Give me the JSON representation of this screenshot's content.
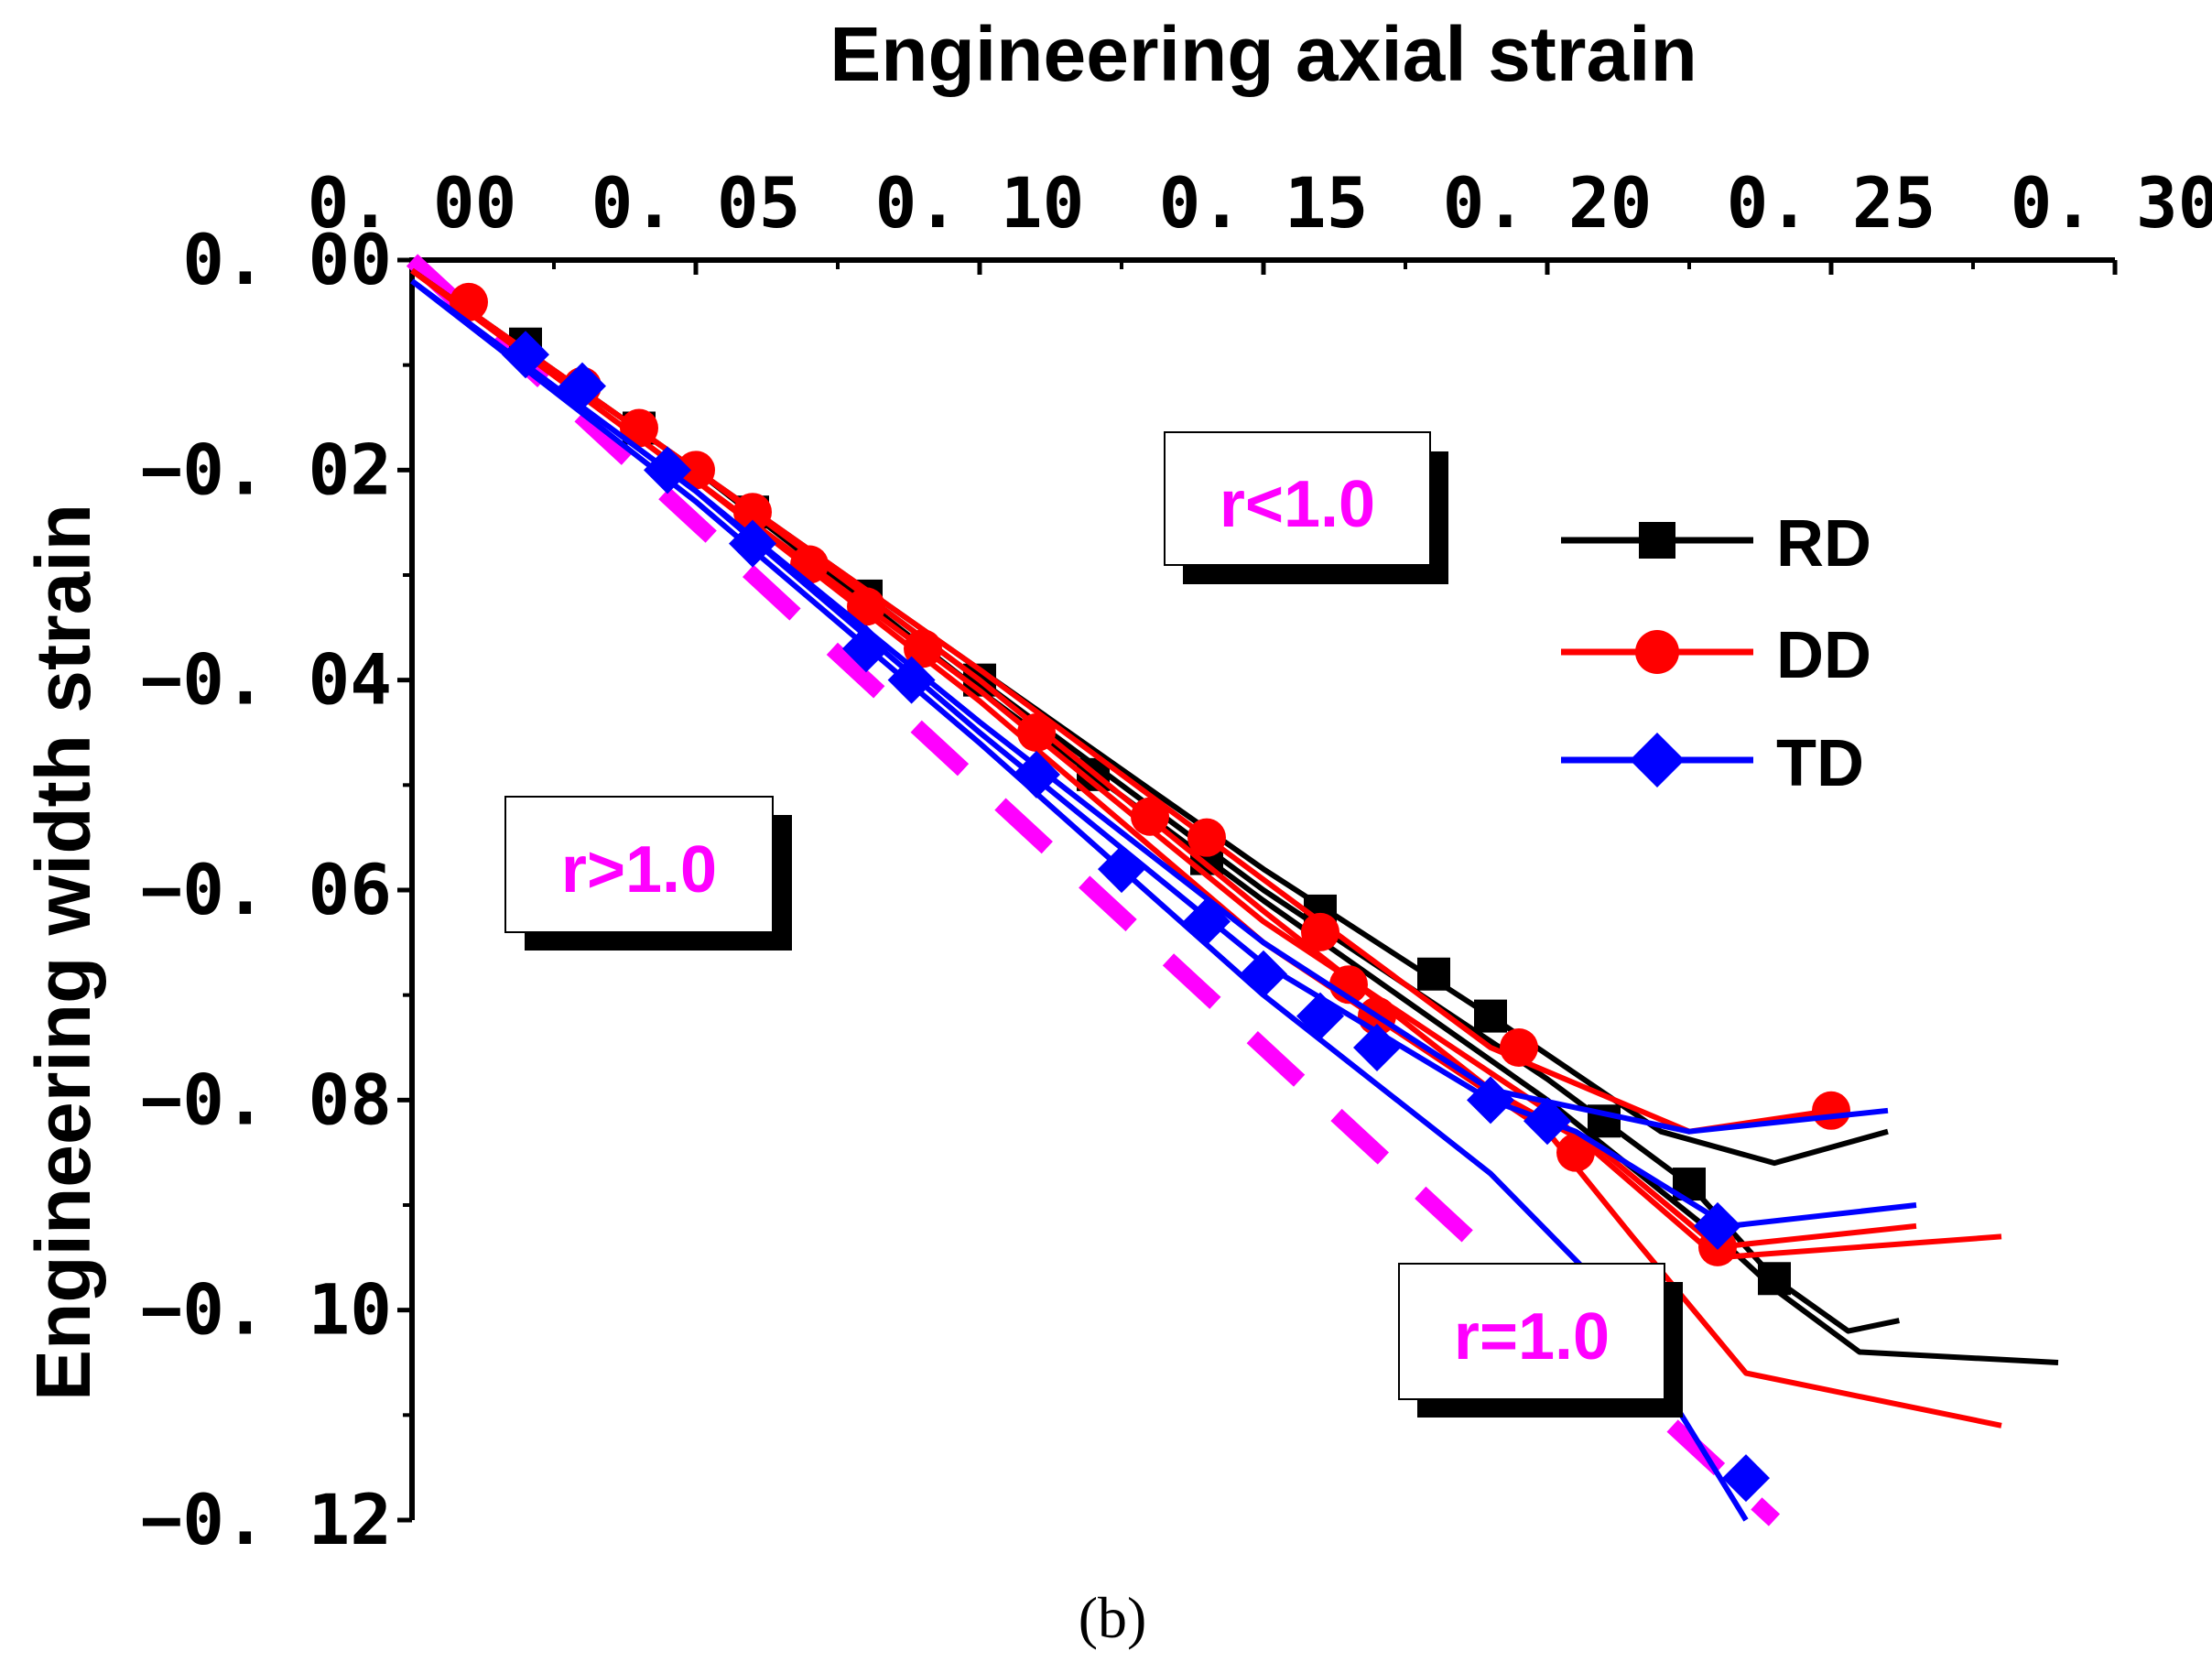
{
  "colors": {
    "RD": "#000000",
    "DD": "#ff0000",
    "TD": "#0000ff",
    "reference": "#ff00ff",
    "axis": "#000000"
  },
  "chart_data": {
    "type": "line",
    "xlabel": "Engineering axial strain",
    "ylabel": "Engineering width strain",
    "caption": "(b)",
    "xlim": [
      0,
      0.3
    ],
    "ylim": [
      -0.12,
      0
    ],
    "x_axis_position": "top",
    "x_ticks": [
      0,
      0.05,
      0.1,
      0.15,
      0.2,
      0.25,
      0.3
    ],
    "x_tick_labels": [
      "0. 00",
      "0. 05",
      "0. 10",
      "0. 15",
      "0. 20",
      "0. 25",
      "0. 30"
    ],
    "y_ticks": [
      0,
      -0.02,
      -0.04,
      -0.06,
      -0.08,
      -0.1,
      -0.12
    ],
    "y_tick_labels": [
      "0. 00",
      "−0. 02",
      "−0. 04",
      "−0. 06",
      "−0. 08",
      "−0. 10",
      "−0. 12"
    ],
    "legend": {
      "position": "right",
      "entries": [
        "RD",
        "DD",
        "TD"
      ]
    },
    "annotations": [
      {
        "text": "r<1.0",
        "x": 0.155,
        "y": -0.022
      },
      {
        "text": "r>1.0",
        "x": 0.04,
        "y": -0.058
      },
      {
        "text": "r=1.0",
        "x": 0.205,
        "y": -0.103
      }
    ],
    "reference_line": {
      "name": "r=1.0",
      "style": "dashed",
      "x": [
        0,
        0.24
      ],
      "y": [
        0,
        -0.12
      ]
    },
    "series": [
      {
        "name": "RD",
        "marker": "square",
        "color": "RD",
        "curves": [
          {
            "x": [
              0,
              0.05,
              0.1,
              0.15,
              0.19,
              0.22,
              0.24,
              0.26
            ],
            "y": [
              -0.001,
              -0.02,
              -0.039,
              -0.058,
              -0.072,
              -0.083,
              -0.086,
              -0.083
            ]
          },
          {
            "x": [
              0,
              0.05,
              0.1,
              0.15,
              0.2,
              0.225,
              0.24,
              0.253,
              0.262
            ],
            "y": [
              -0.001,
              -0.02,
              -0.04,
              -0.06,
              -0.078,
              -0.088,
              -0.097,
              -0.102,
              -0.101
            ]
          },
          {
            "x": [
              0,
              0.05,
              0.1,
              0.15,
              0.2,
              0.23,
              0.24,
              0.255,
              0.29
            ],
            "y": [
              -0.001,
              -0.02,
              -0.041,
              -0.061,
              -0.08,
              -0.093,
              -0.098,
              -0.104,
              -0.105
            ]
          }
        ],
        "markers": {
          "x": [
            0.02,
            0.04,
            0.06,
            0.08,
            0.1,
            0.12,
            0.14,
            0.16,
            0.18,
            0.19,
            0.21,
            0.225,
            0.24
          ],
          "y": [
            -0.008,
            -0.016,
            -0.024,
            -0.032,
            -0.04,
            -0.049,
            -0.057,
            -0.062,
            -0.068,
            -0.072,
            -0.082,
            -0.088,
            -0.097
          ]
        }
      },
      {
        "name": "DD",
        "marker": "circle",
        "color": "DD",
        "curves": [
          {
            "x": [
              0,
              0.05,
              0.1,
              0.15,
              0.19,
              0.225,
              0.25
            ],
            "y": [
              -0.001,
              -0.02,
              -0.039,
              -0.059,
              -0.075,
              -0.083,
              -0.081
            ]
          },
          {
            "x": [
              0,
              0.05,
              0.1,
              0.15,
              0.19,
              0.21,
              0.23,
              0.265
            ],
            "y": [
              -0.001,
              -0.02,
              -0.04,
              -0.062,
              -0.079,
              -0.085,
              -0.094,
              -0.092
            ]
          },
          {
            "x": [
              0,
              0.05,
              0.1,
              0.15,
              0.2,
              0.215,
              0.23,
              0.28
            ],
            "y": [
              -0.001,
              -0.021,
              -0.041,
              -0.063,
              -0.081,
              -0.088,
              -0.095,
              -0.093
            ]
          },
          {
            "x": [
              0,
              0.05,
              0.1,
              0.15,
              0.2,
              0.215,
              0.235,
              0.28
            ],
            "y": [
              -0.001,
              -0.021,
              -0.042,
              -0.065,
              -0.083,
              -0.093,
              -0.106,
              -0.111
            ]
          }
        ],
        "markers": {
          "x": [
            0.01,
            0.03,
            0.04,
            0.05,
            0.06,
            0.07,
            0.08,
            0.09,
            0.11,
            0.13,
            0.14,
            0.16,
            0.165,
            0.17,
            0.195,
            0.205,
            0.23,
            0.25
          ],
          "y": [
            -0.004,
            -0.012,
            -0.016,
            -0.02,
            -0.024,
            -0.029,
            -0.033,
            -0.037,
            -0.045,
            -0.053,
            -0.055,
            -0.064,
            -0.069,
            -0.072,
            -0.075,
            -0.085,
            -0.094,
            -0.081
          ]
        }
      },
      {
        "name": "TD",
        "marker": "diamond",
        "color": "TD",
        "curves": [
          {
            "x": [
              0,
              0.05,
              0.1,
              0.15,
              0.19,
              0.225,
              0.26
            ],
            "y": [
              -0.002,
              -0.022,
              -0.044,
              -0.065,
              -0.079,
              -0.083,
              -0.081
            ]
          },
          {
            "x": [
              0,
              0.05,
              0.1,
              0.15,
              0.19,
              0.205,
              0.232,
              0.265
            ],
            "y": [
              -0.002,
              -0.022,
              -0.045,
              -0.067,
              -0.08,
              -0.083,
              -0.092,
              -0.09
            ]
          },
          {
            "x": [
              0,
              0.05,
              0.1,
              0.15,
              0.19,
              0.21,
              0.235
            ],
            "y": [
              -0.002,
              -0.023,
              -0.046,
              -0.07,
              -0.087,
              -0.098,
              -0.12
            ]
          }
        ],
        "markers": {
          "x": [
            0.02,
            0.03,
            0.045,
            0.06,
            0.08,
            0.088,
            0.11,
            0.125,
            0.14,
            0.15,
            0.16,
            0.17,
            0.19,
            0.2,
            0.23,
            0.235
          ],
          "y": [
            -0.009,
            -0.012,
            -0.02,
            -0.027,
            -0.037,
            -0.04,
            -0.049,
            -0.058,
            -0.063,
            -0.068,
            -0.072,
            -0.075,
            -0.08,
            -0.082,
            -0.092,
            -0.116
          ]
        }
      }
    ]
  }
}
